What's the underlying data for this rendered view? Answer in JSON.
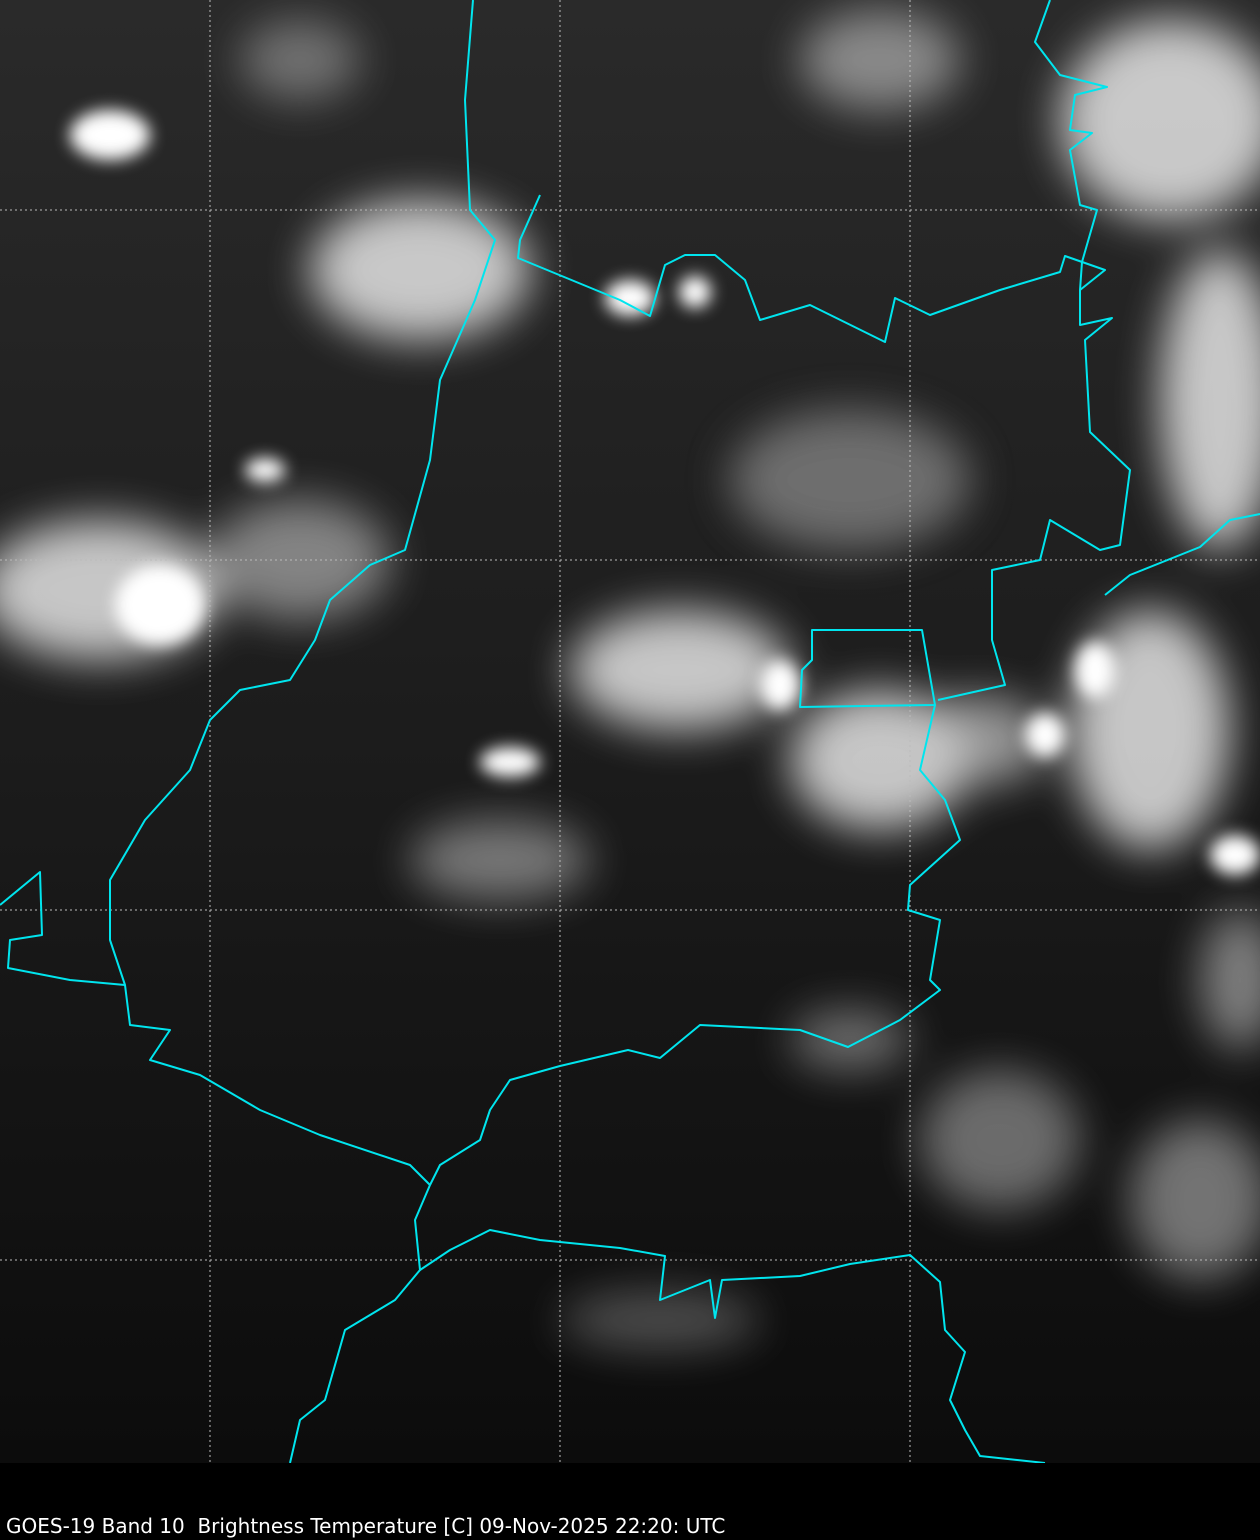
{
  "caption": "GOES-19 Band 10  Brightness Temperature [C] 09-Nov-2025 22:20: UTC",
  "colors": {
    "background": "#000000",
    "border_lines": "#00e5ee",
    "graticule": "#bbbbbb",
    "cloud": "#ffffff",
    "clear_sky": "#1a1a1a"
  },
  "layers": [
    "satellite-imagery",
    "political-borders",
    "lat-lon-graticule"
  ]
}
